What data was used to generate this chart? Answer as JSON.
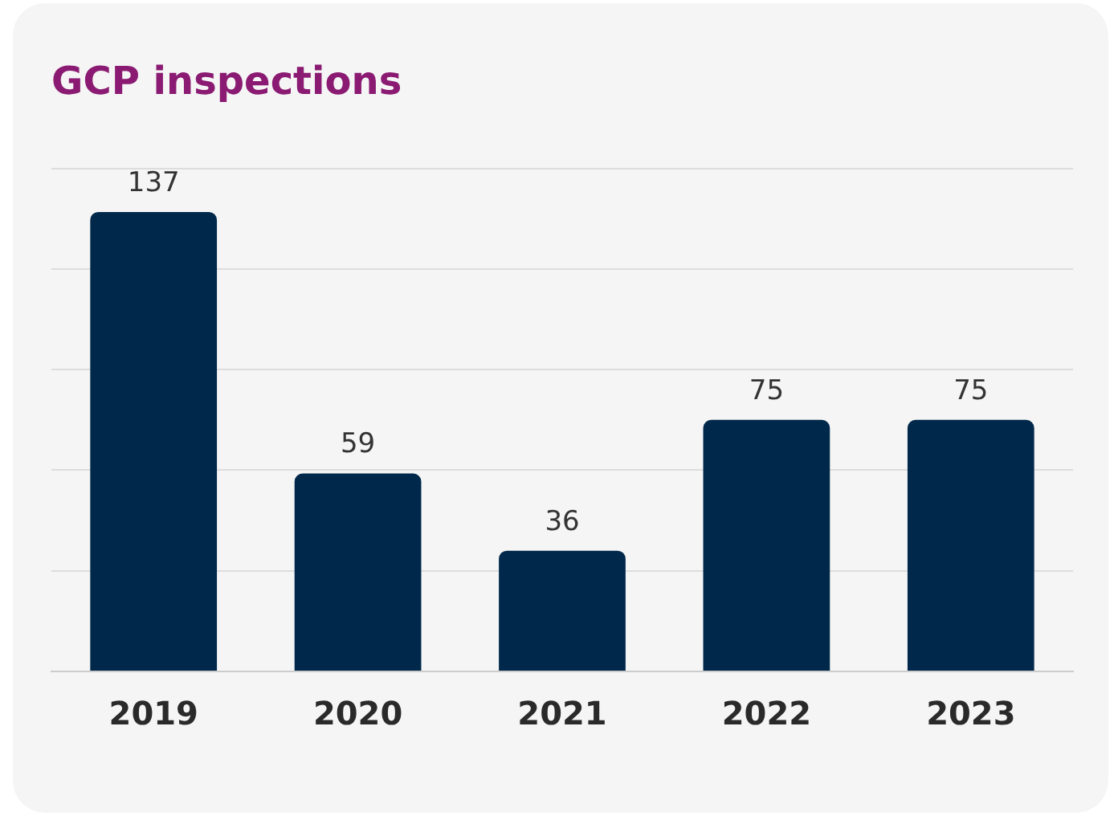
{
  "chart_data": {
    "type": "bar",
    "title": "GCP inspections",
    "categories": [
      "2019",
      "2020",
      "2021",
      "2022",
      "2023"
    ],
    "values": [
      137,
      59,
      36,
      75,
      75
    ],
    "color": "#00284a",
    "ylim": [
      0,
      150
    ],
    "yticks": [
      {
        "value": 0,
        "label": null
      },
      {
        "value": 30,
        "label": null
      },
      {
        "value": 60,
        "label": null
      },
      {
        "value": 90,
        "label": null
      },
      {
        "value": 120,
        "label": null
      },
      {
        "value": 150,
        "label": null
      }
    ],
    "grid": "y",
    "tick_labels": "x",
    "data_labels": true,
    "legend": false
  }
}
